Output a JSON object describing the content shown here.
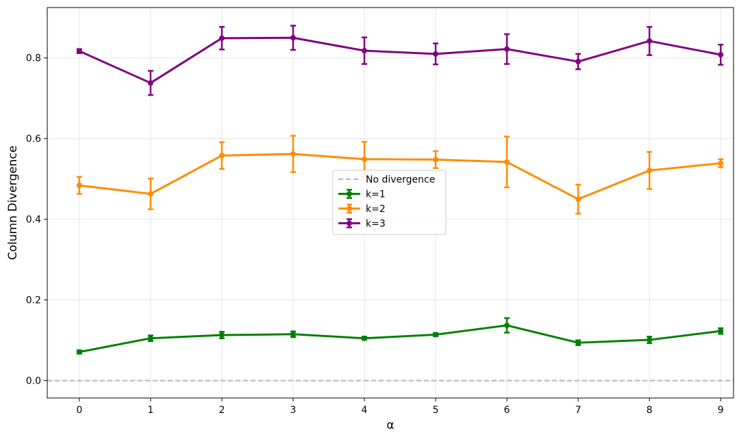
{
  "chart_data": {
    "type": "line",
    "title": "",
    "xlabel": "α",
    "ylabel": "Column Divergence",
    "x": [
      0,
      1,
      2,
      3,
      4,
      5,
      6,
      7,
      8,
      9
    ],
    "x_ticks": [
      "0",
      "1",
      "2",
      "3",
      "4",
      "5",
      "6",
      "7",
      "8",
      "9"
    ],
    "y_ticks": [
      "0.0",
      "0.2",
      "0.4",
      "0.6",
      "0.8"
    ],
    "y_tick_values": [
      0.0,
      0.2,
      0.4,
      0.6,
      0.8
    ],
    "xlim": [
      -0.45,
      9.18
    ],
    "ylim": [
      -0.043,
      0.925
    ],
    "grid": true,
    "legend_position": "center",
    "reference_line": {
      "name": "No divergence",
      "y": 0.0,
      "color": "#b3b3b3",
      "style": "dashed"
    },
    "series": [
      {
        "name": "k=1",
        "color": "#008000",
        "values": [
          0.071,
          0.105,
          0.113,
          0.115,
          0.105,
          0.114,
          0.137,
          0.094,
          0.101,
          0.123
        ],
        "errors": [
          0.004,
          0.007,
          0.008,
          0.007,
          0.004,
          0.004,
          0.018,
          0.006,
          0.008,
          0.007
        ]
      },
      {
        "name": "k=2",
        "color": "#ff8c00",
        "values": [
          0.484,
          0.463,
          0.558,
          0.562,
          0.549,
          0.548,
          0.542,
          0.45,
          0.521,
          0.539
        ],
        "errors": [
          0.021,
          0.038,
          0.033,
          0.045,
          0.043,
          0.021,
          0.063,
          0.036,
          0.046,
          0.01
        ]
      },
      {
        "name": "k=3",
        "color": "#800080",
        "values": [
          0.817,
          0.738,
          0.849,
          0.85,
          0.818,
          0.81,
          0.822,
          0.791,
          0.842,
          0.808
        ],
        "errors": [
          0.005,
          0.03,
          0.028,
          0.03,
          0.033,
          0.026,
          0.037,
          0.019,
          0.035,
          0.025
        ]
      }
    ]
  }
}
